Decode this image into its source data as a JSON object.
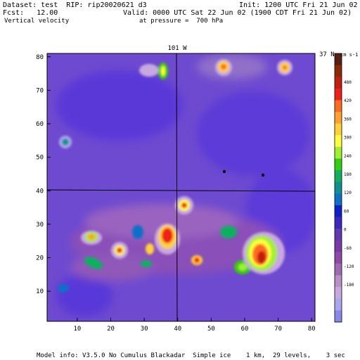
{
  "header": {
    "dataset_line": "Dataset: test  RIP: rip20020621 d3",
    "init_line": "Init: 1200 UTC Fri 21 Jun 02",
    "fcst_line": "Fcst:   12.00",
    "valid_line": "Valid: 0000 UTC Sat 22 Jun 02 (1900 CDT Fri 21 Jun 02)",
    "field_name": "Vertical velocity",
    "level_text": "at pressure =  700 hPa"
  },
  "map": {
    "meridian_label": "101 W",
    "parallel_label": "37 N",
    "x_ticks": [
      "10",
      "20",
      "30",
      "40",
      "50",
      "60",
      "70",
      "80"
    ],
    "y_ticks": [
      "10",
      "20",
      "30",
      "40",
      "50",
      "60",
      "70",
      "80"
    ]
  },
  "colorbar": {
    "units": "cm s-1",
    "labels": [
      "480",
      "420",
      "360",
      "300",
      "240",
      "180",
      "120",
      "60",
      "0",
      "-60",
      "-120",
      "-180"
    ],
    "colors": [
      "#5a1f10",
      "#8b2a08",
      "#c11f10",
      "#ee2018",
      "#ff6a22",
      "#ffa030",
      "#ffd23a",
      "#ffff40",
      "#a0f030",
      "#30d010",
      "#10b060",
      "#109090",
      "#1070c8",
      "#1020c8",
      "#3a28c0",
      "#6038b0",
      "#7a3aa8",
      "#8f4aa8",
      "#a06ab0",
      "#b890c8",
      "#c8a8e0",
      "#a8a8f0",
      "#8888e8"
    ]
  },
  "footer": {
    "model_info": "Model info: V3.5.0 No Cumulus Blackadar  Simple ice    1 km,  29 levels,    3 sec"
  }
}
